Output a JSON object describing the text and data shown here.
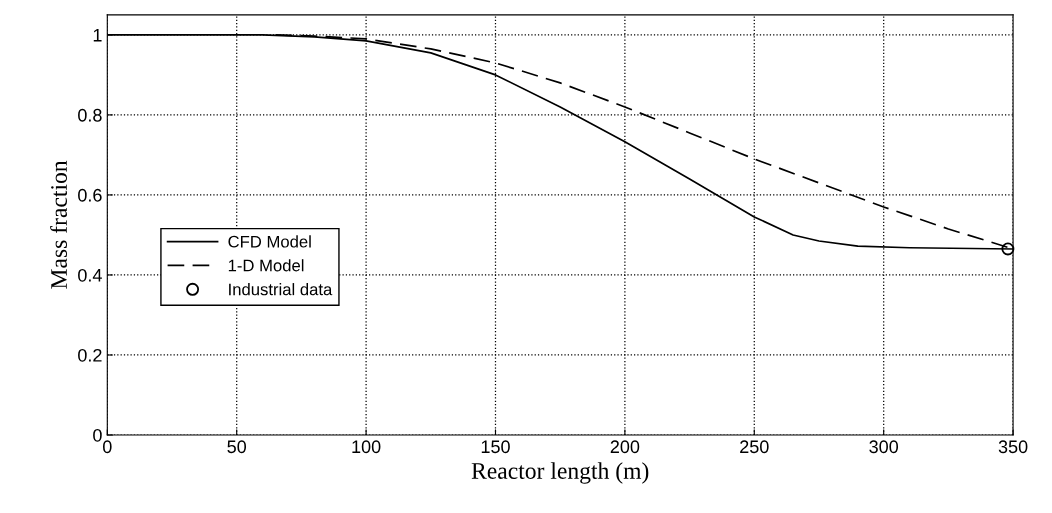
{
  "chart_data": {
    "type": "line",
    "xlabel": "Reactor length (m)",
    "ylabel": "Mass fraction",
    "xlim": [
      0,
      350
    ],
    "ylim": [
      0,
      1.05
    ],
    "xticks": [
      0,
      50,
      100,
      150,
      200,
      250,
      300,
      350
    ],
    "yticks": [
      0,
      0.2,
      0.4,
      0.6,
      0.8,
      1
    ],
    "grid": true,
    "legend": "left",
    "series": [
      {
        "name": "CFD Model",
        "color": "#000000",
        "line_style": "solid",
        "marker": "none",
        "x": [
          0,
          60,
          80,
          100,
          125,
          150,
          175,
          200,
          225,
          250,
          265,
          275,
          290,
          310,
          350
        ],
        "values": [
          1,
          1,
          0.995,
          0.985,
          0.955,
          0.9,
          0.82,
          0.733,
          0.64,
          0.545,
          0.5,
          0.485,
          0.472,
          0.468,
          0.465
        ]
      },
      {
        "name": "1-D Model",
        "color": "#000000",
        "line_style": "dashed",
        "marker": "none",
        "x": [
          65,
          80,
          100,
          125,
          150,
          175,
          200,
          225,
          250,
          275,
          300,
          325,
          350
        ],
        "values": [
          1,
          0.997,
          0.99,
          0.965,
          0.93,
          0.88,
          0.82,
          0.755,
          0.69,
          0.63,
          0.57,
          0.515,
          0.465
        ]
      },
      {
        "name": "Industrial data",
        "type": "scatter",
        "color": "#000000",
        "marker": "circle",
        "x": [
          348
        ],
        "values": [
          0.465
        ]
      }
    ]
  }
}
